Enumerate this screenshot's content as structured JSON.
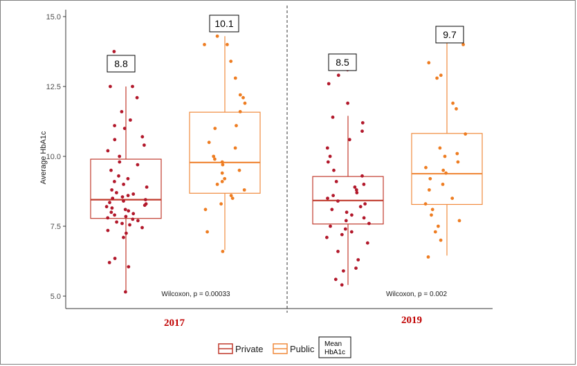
{
  "chart_data": {
    "type": "box",
    "ylabel": "Average HbA1c",
    "ylim": [
      4.8,
      15.2
    ],
    "yticks": [
      5.0,
      7.5,
      10.0,
      12.5,
      15.0
    ],
    "ytick_labels": [
      "5.0",
      "7.5",
      "10.0",
      "12.5",
      "15.0"
    ],
    "groups": [
      "2017",
      "2019"
    ],
    "series": [
      {
        "name": "Private",
        "color": "#c0392b",
        "point_color": "#b2182b"
      },
      {
        "name": "Public",
        "color": "#f08a3c",
        "point_color": "#ee7d22"
      }
    ],
    "boxes": [
      {
        "group": "2017",
        "series": "Private",
        "min": 5.2,
        "q1": 7.78,
        "median": 8.45,
        "q3": 9.9,
        "max": 12.5,
        "mean_label": "8.8",
        "points": [
          5.15,
          6.05,
          6.2,
          6.35,
          7.1,
          7.25,
          7.35,
          7.45,
          7.55,
          7.6,
          7.65,
          7.7,
          7.75,
          7.8,
          7.85,
          7.9,
          7.95,
          8.0,
          8.05,
          8.1,
          8.15,
          8.2,
          8.25,
          8.3,
          8.35,
          8.4,
          8.45,
          8.5,
          8.55,
          8.6,
          8.65,
          8.7,
          8.8,
          8.9,
          9.0,
          9.1,
          9.2,
          9.3,
          9.5,
          9.7,
          9.8,
          10.0,
          10.2,
          10.4,
          10.6,
          10.7,
          11.0,
          11.1,
          11.3,
          11.6,
          12.1,
          12.5,
          12.5,
          13.75
        ]
      },
      {
        "group": "2017",
        "series": "Public",
        "min": 6.65,
        "q1": 8.68,
        "median": 9.78,
        "q3": 11.58,
        "max": 14.3,
        "mean_label": "10.1",
        "points": [
          6.6,
          7.3,
          8.1,
          8.3,
          8.5,
          8.6,
          8.8,
          9.0,
          9.1,
          9.2,
          9.4,
          9.5,
          9.7,
          9.8,
          9.9,
          10.0,
          10.3,
          10.5,
          11.0,
          11.1,
          11.6,
          11.9,
          12.1,
          12.2,
          12.8,
          13.4,
          14.0,
          14.0,
          14.3
        ]
      },
      {
        "group": "2019",
        "series": "Private",
        "min": 5.4,
        "q1": 7.58,
        "median": 8.42,
        "q3": 9.28,
        "max": 11.45,
        "mean_label": "8.5",
        "points": [
          5.4,
          5.6,
          5.9,
          6.0,
          6.3,
          6.6,
          6.9,
          7.1,
          7.2,
          7.3,
          7.4,
          7.5,
          7.6,
          7.7,
          7.8,
          7.9,
          8.0,
          8.1,
          8.2,
          8.3,
          8.4,
          8.5,
          8.6,
          8.7,
          8.8,
          8.9,
          9.0,
          9.1,
          9.3,
          9.5,
          9.8,
          10.0,
          10.3,
          10.6,
          10.9,
          11.2,
          11.4,
          11.9,
          12.6,
          12.9,
          13.1
        ]
      },
      {
        "group": "2019",
        "series": "Public",
        "min": 6.45,
        "q1": 8.28,
        "median": 9.38,
        "q3": 10.82,
        "max": 14.05,
        "mean_label": "9.7",
        "points": [
          6.4,
          7.0,
          7.3,
          7.5,
          7.7,
          7.9,
          8.1,
          8.3,
          8.5,
          8.8,
          9.0,
          9.2,
          9.4,
          9.5,
          9.6,
          9.8,
          10.0,
          10.1,
          10.3,
          10.8,
          11.7,
          11.9,
          12.8,
          12.9,
          13.35,
          14.0
        ]
      }
    ],
    "annotations": [
      "Wilcoxon, p = 0.00033",
      "Wilcoxon, p = 0.002"
    ],
    "legend": {
      "placement": "bottom",
      "items": [
        "Private",
        "Public"
      ],
      "mean_key": [
        "Mean",
        "HbA1c"
      ]
    }
  }
}
